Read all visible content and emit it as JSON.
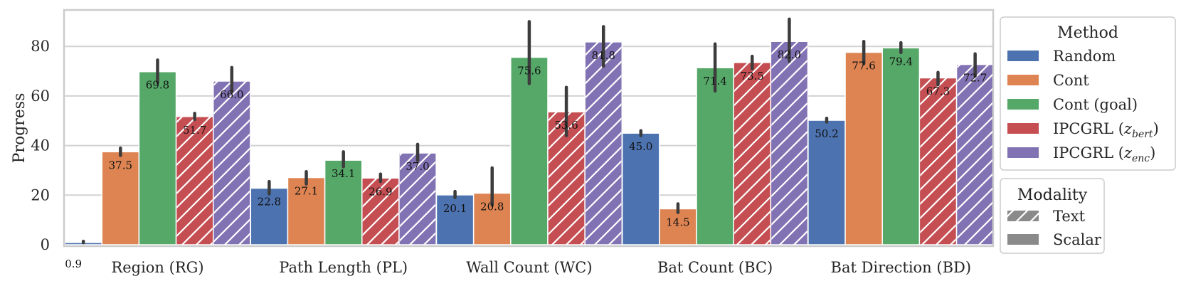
{
  "chart_data": {
    "type": "bar",
    "title": "",
    "xlabel": "",
    "ylabel": "Progress",
    "ylim": [
      0,
      95
    ],
    "yticks": [
      0,
      20,
      40,
      60,
      80
    ],
    "grid": true,
    "categories": [
      "Region (RG)",
      "Path Length (PL)",
      "Wall Count (WC)",
      "Bat Count (BC)",
      "Bat Direction (BD)"
    ],
    "series": [
      {
        "name": "Random",
        "color": "#4C72B0",
        "modality": "Scalar",
        "values": [
          0.9,
          22.8,
          20.1,
          45.0,
          50.2
        ],
        "labels": [
          "0.9",
          "22.8",
          "20.1",
          "45.0",
          "50.2"
        ],
        "err_low": [
          0.8,
          20.5,
          19.0,
          44.0,
          49.5
        ],
        "err_high": [
          1.4,
          25.5,
          21.5,
          46.0,
          51.0
        ]
      },
      {
        "name": "Cont",
        "color": "#DD8452",
        "modality": "Scalar",
        "values": [
          37.5,
          27.1,
          20.8,
          14.5,
          77.6
        ],
        "labels": [
          "37.5",
          "27.1",
          "20.8",
          "14.5",
          "77.6"
        ],
        "err_low": [
          36.0,
          24.5,
          16.0,
          13.0,
          73.0
        ],
        "err_high": [
          39.0,
          29.5,
          31.0,
          16.5,
          82.0
        ]
      },
      {
        "name": "Cont (goal)",
        "color": "#55A868",
        "modality": "Scalar",
        "values": [
          69.8,
          34.1,
          75.6,
          71.4,
          79.4
        ],
        "labels": [
          "69.8",
          "34.1",
          "75.6",
          "71.4",
          "79.4"
        ],
        "err_low": [
          65.5,
          31.5,
          65.0,
          62.0,
          77.5
        ],
        "err_high": [
          74.5,
          37.5,
          90.0,
          81.0,
          81.5
        ]
      },
      {
        "name": "IPCGRL (z_bert)",
        "color": "#C44E52",
        "modality": "Text",
        "values": [
          51.7,
          26.9,
          53.6,
          73.5,
          67.3
        ],
        "labels": [
          "51.7",
          "26.9",
          "53.6",
          "73.5",
          "67.3"
        ],
        "err_low": [
          50.5,
          25.5,
          44.0,
          71.0,
          64.5
        ],
        "err_high": [
          53.0,
          28.5,
          63.5,
          76.0,
          69.5
        ]
      },
      {
        "name": "IPCGRL (z_enc)",
        "color": "#8172B3",
        "modality": "Text",
        "values": [
          66.0,
          37.0,
          81.8,
          82.0,
          72.7
        ],
        "labels": [
          "66.0",
          "37.0",
          "81.8",
          "82.0",
          "72.7"
        ],
        "err_low": [
          61.5,
          34.0,
          72.0,
          74.0,
          68.0
        ],
        "err_high": [
          71.5,
          40.5,
          88.0,
          91.0,
          77.0
        ]
      }
    ],
    "legends": [
      {
        "title": "Method",
        "placement": "right-top",
        "entries": [
          "Random",
          "Cont",
          "Cont (goal)",
          "IPCGRL (",
          "IPCGRL ("
        ],
        "subscripts": [
          "",
          "",
          "",
          "z_bert",
          "z_enc"
        ]
      },
      {
        "title": "Modality",
        "placement": "right-bottom",
        "entries": [
          "Text",
          "Scalar"
        ]
      }
    ]
  }
}
